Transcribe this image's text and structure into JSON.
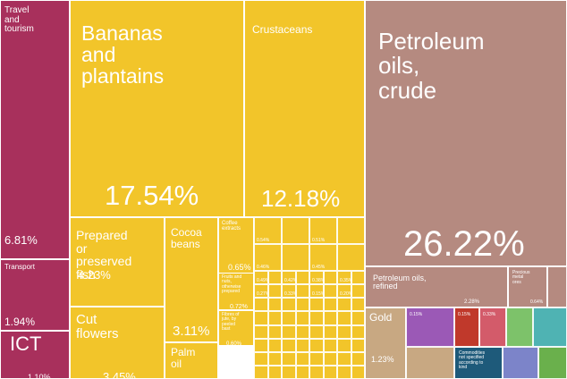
{
  "chart_data": {
    "type": "treemap",
    "title": "",
    "unit": "% of exports",
    "colors": {
      "services": "#a8305c",
      "vegetables": "#f2c52a",
      "foodstuffs": "#f2c52a",
      "minerals": "#b58a80",
      "metals": "#c8a882"
    },
    "tiles": [
      {
        "id": "travel-and-tourism",
        "label": "Travel\nand\ntourism",
        "value": 6.81,
        "value_label": "6.81%",
        "group": "services"
      },
      {
        "id": "transport",
        "label": "Transport",
        "value": 1.94,
        "value_label": "1.94%",
        "group": "services"
      },
      {
        "id": "ict",
        "label": "ICT",
        "value": 1.1,
        "value_label": "1.10%",
        "group": "services"
      },
      {
        "id": "bananas-and-plantains",
        "label": "Bananas\nand\nplantains",
        "value": 17.54,
        "value_label": "17.54%",
        "group": "vegetables"
      },
      {
        "id": "crustaceans",
        "label": "Crustaceans",
        "value": 12.18,
        "value_label": "12.18%",
        "group": "foodstuffs"
      },
      {
        "id": "prepared-or-preserved-fish",
        "label": "Prepared\nor\npreserved\nfish",
        "value": 4.23,
        "value_label": "4.23%",
        "group": "foodstuffs"
      },
      {
        "id": "cocoa-beans",
        "label": "Cocoa\nbeans",
        "value": 3.11,
        "value_label": "3.11%",
        "group": "vegetables"
      },
      {
        "id": "cut-flowers",
        "label": "Cut\nflowers",
        "value": 3.45,
        "value_label": "3.45%",
        "group": "vegetables"
      },
      {
        "id": "palm-oil",
        "label": "Palm\noil",
        "value": 1.0,
        "value_label": "",
        "group": "vegetables"
      },
      {
        "id": "coffee-extracts",
        "label": "Coffee\nextracts",
        "value": 0.65,
        "value_label": "0.65%",
        "group": "foodstuffs"
      },
      {
        "id": "fruits-nuts-prepared",
        "label": "Fruits and\nnuts,\notherwise\nprepared",
        "value": 0.72,
        "value_label": "0.72%",
        "group": "foodstuffs"
      },
      {
        "id": "fibres-of-jute",
        "label": "Fibres of\njute, by\npeeled\nbast",
        "value": 0.6,
        "value_label": "0.60%",
        "group": "vegetables"
      },
      {
        "id": "petroleum-oils-crude",
        "label": "Petroleum\noils,\ncrude",
        "value": 26.22,
        "value_label": "26.22%",
        "group": "minerals"
      },
      {
        "id": "petroleum-oils-refined",
        "label": "Petroleum oils,\nrefined",
        "value": 2.28,
        "value_label": "2.28%",
        "group": "minerals"
      },
      {
        "id": "precious-metal-ores",
        "label": "Precious\nmetal\nores",
        "value": 0.64,
        "value_label": "0.64%",
        "group": "minerals"
      },
      {
        "id": "gold",
        "label": "Gold",
        "value": 1.23,
        "value_label": "1.23%",
        "group": "metals"
      },
      {
        "id": "commodities-not-specified",
        "label": "Commodities\nnot specified\naccording to\nkind",
        "value": 0.3,
        "value_label": "",
        "group": "other"
      }
    ],
    "small_tile_values": [
      "0.54%",
      "0.51%",
      "0.46%",
      "0.45%",
      "0.49%",
      "0.42%",
      "0.38%",
      "0.35%",
      "0.27%",
      "0.33%",
      "0.15%",
      "0.20%",
      "0.15%",
      "0.15%",
      "0.33%"
    ]
  }
}
